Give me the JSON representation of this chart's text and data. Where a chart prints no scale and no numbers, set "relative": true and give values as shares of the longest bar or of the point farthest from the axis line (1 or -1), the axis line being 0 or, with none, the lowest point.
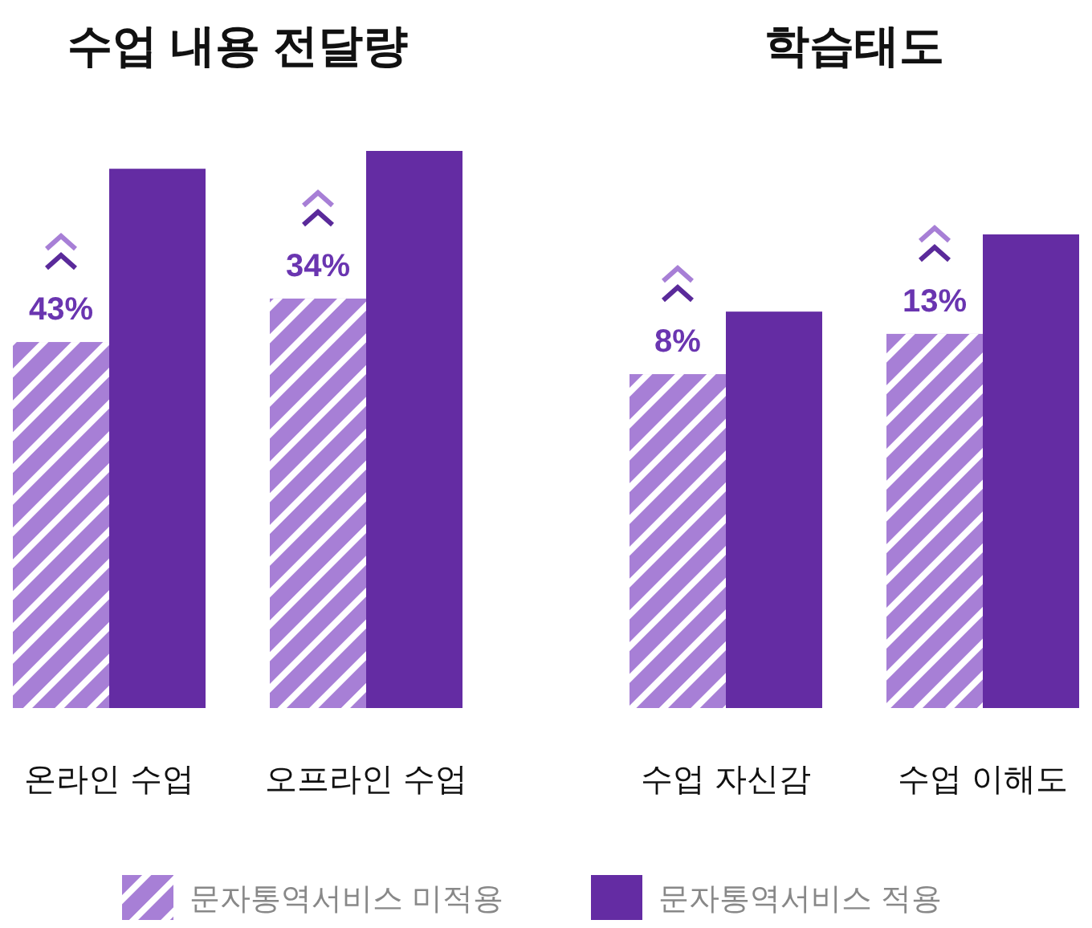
{
  "chart_data": [
    {
      "type": "bar",
      "title": "수업 내용 전달량",
      "relative": true,
      "categories": [
        "온라인 수업",
        "오프라인 수업"
      ],
      "series": [
        {
          "name": "문자통역서비스 미적용",
          "color": "#a77fd6",
          "values": [
            0.657,
            0.735
          ]
        },
        {
          "name": "문자통역서비스 적용",
          "color": "#642ca3",
          "values": [
            0.968,
            1
          ]
        }
      ],
      "annotations": [
        {
          "text": "43%",
          "x": "온라인 수업",
          "y": 0.657
        },
        {
          "text": "34%",
          "x": "오프라인 수업",
          "y": 0.735
        }
      ],
      "legend": "bottom"
    },
    {
      "type": "bar",
      "title": "학습태도",
      "relative": true,
      "categories": [
        "수업 자신감",
        "수업 이해도"
      ],
      "series": [
        {
          "color": "#a77fd6",
          "values": [
            0.705,
            0.79
          ]
        },
        {
          "color": "#642ca3",
          "values": [
            0.837,
            1
          ]
        }
      ],
      "annotations": [
        {
          "text": "8%",
          "x": "수업 자신감",
          "y": 0.705
        },
        {
          "text": "13%",
          "x": "수업 이해도",
          "y": 0.79
        }
      ]
    }
  ]
}
